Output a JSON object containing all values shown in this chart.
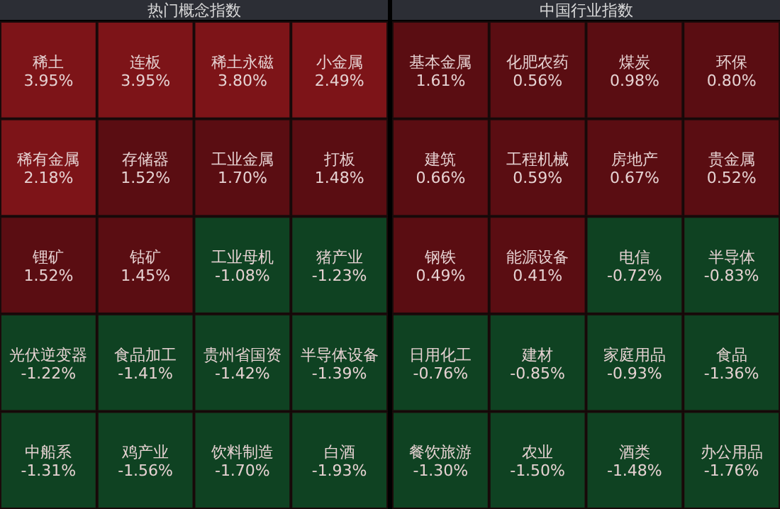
{
  "chart_data": [
    {
      "type": "other",
      "title": "热门概念指数",
      "categories": [
        "稀土",
        "连板",
        "稀土永磁",
        "小金属",
        "稀有金属",
        "存储器",
        "工业金属",
        "打板",
        "锂矿",
        "钴矿",
        "工业母机",
        "猪产业",
        "光伏逆变器",
        "食品加工",
        "贵州省国资",
        "半导体设备",
        "中船系",
        "鸡产业",
        "饮料制造",
        "白酒"
      ],
      "values": [
        3.95,
        3.95,
        3.8,
        2.49,
        2.18,
        1.52,
        1.7,
        1.48,
        1.52,
        1.45,
        -1.08,
        -1.23,
        -1.22,
        -1.41,
        -1.42,
        -1.39,
        -1.31,
        -1.56,
        -1.7,
        -1.93
      ],
      "value_labels": [
        "3.95%",
        "3.95%",
        "3.80%",
        "2.49%",
        "2.18%",
        "1.52%",
        "1.70%",
        "1.48%",
        "1.52%",
        "1.45%",
        "-1.08%",
        "-1.23%",
        "-1.22%",
        "-1.41%",
        "-1.42%",
        "-1.39%",
        "-1.31%",
        "-1.56%",
        "-1.70%",
        "-1.93%"
      ]
    },
    {
      "type": "other",
      "title": "中国行业指数",
      "categories": [
        "基本金属",
        "化肥农药",
        "煤炭",
        "环保",
        "建筑",
        "工程机械",
        "房地产",
        "贵金属",
        "钢铁",
        "能源设备",
        "电信",
        "半导体",
        "日用化工",
        "建材",
        "家庭用品",
        "食品",
        "餐饮旅游",
        "农业",
        "酒类",
        "办公用品"
      ],
      "values": [
        1.61,
        0.56,
        0.98,
        0.8,
        0.66,
        0.59,
        0.67,
        0.52,
        0.49,
        0.41,
        -0.72,
        -0.83,
        -0.76,
        -0.85,
        -0.93,
        -1.36,
        -1.3,
        -1.5,
        -1.48,
        -1.76
      ],
      "value_labels": [
        "1.61%",
        "0.56%",
        "0.98%",
        "0.80%",
        "0.66%",
        "0.59%",
        "0.67%",
        "0.52%",
        "0.49%",
        "0.41%",
        "-0.72%",
        "-0.83%",
        "-0.76%",
        "-0.85%",
        "-0.93%",
        "-1.36%",
        "-1.30%",
        "-1.50%",
        "-1.48%",
        "-1.76%"
      ]
    }
  ]
}
